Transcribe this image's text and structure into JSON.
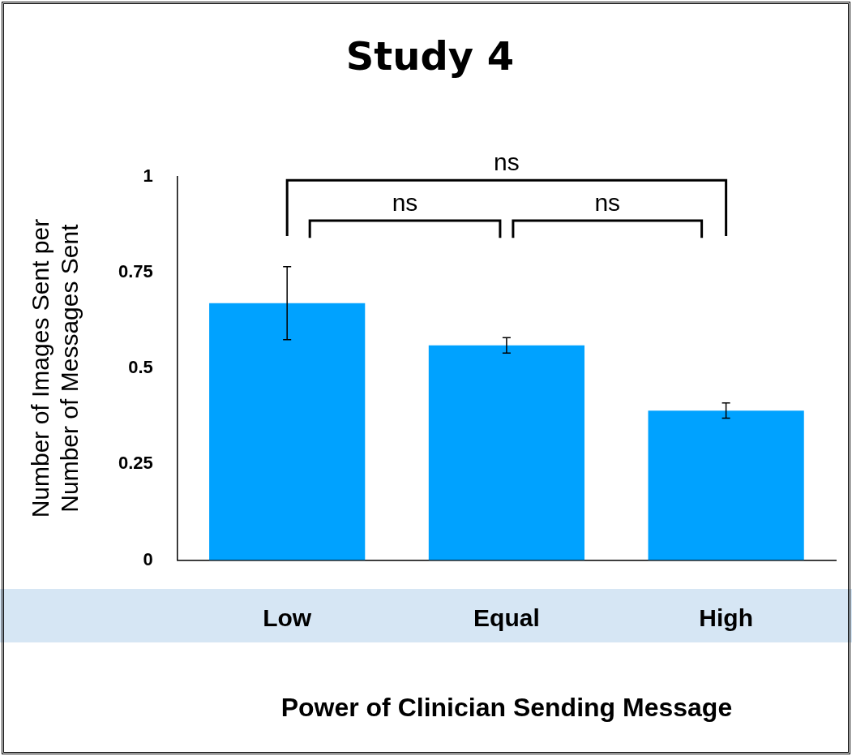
{
  "chart_data": {
    "type": "bar",
    "title": "Study 4",
    "xlabel": "Power of Clinician Sending Message",
    "ylabel": "Number of Images Sent per Number of Messages Sent",
    "categories": [
      "Low",
      "Equal",
      "High"
    ],
    "values": [
      0.67,
      0.56,
      0.39
    ],
    "errors": [
      [
        0.575,
        0.765
      ],
      [
        0.54,
        0.58
      ],
      [
        0.37,
        0.41
      ]
    ],
    "color": "#00a2ff",
    "ylim": [
      0,
      1
    ],
    "yticks": [
      0,
      0.25,
      0.5,
      0.75,
      1
    ],
    "annotations": [
      "ns",
      "ns",
      "ns"
    ],
    "grid": false,
    "legend": false
  }
}
